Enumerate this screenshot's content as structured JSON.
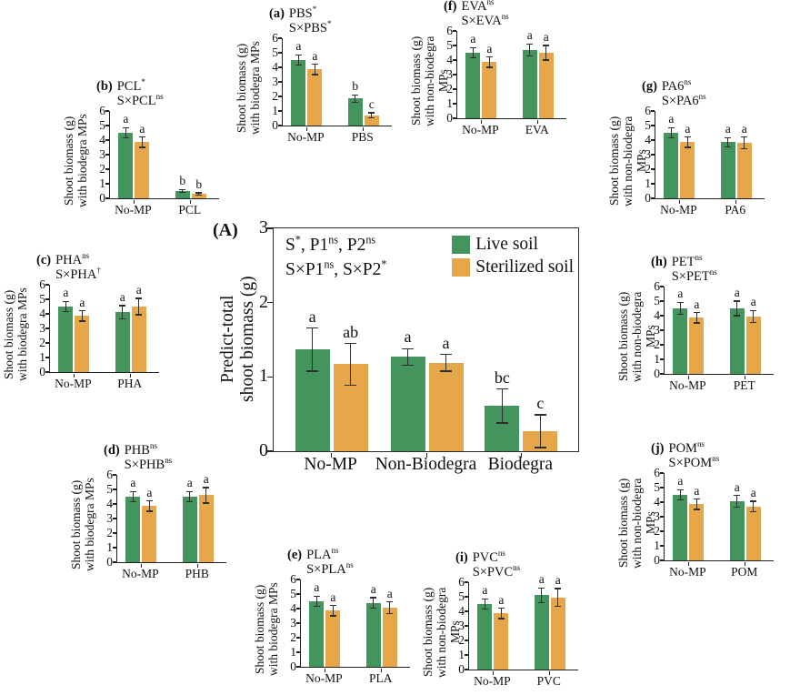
{
  "figure_label": "(A)",
  "colors": {
    "live_soil": "#44945E",
    "sterilized_soil": "#E6A74A",
    "axis": "#222222"
  },
  "legend": {
    "items": [
      {
        "label": "Live soil",
        "key": "live_soil"
      },
      {
        "label": "Sterilized soil",
        "key": "sterilized_soil"
      }
    ]
  },
  "chart_data": [
    {
      "id": "A",
      "type": "bar",
      "stats_lines": [
        [
          {
            "t": "S"
          },
          {
            "sup": "*"
          },
          {
            "t": ", P1"
          },
          {
            "sup": "ns"
          },
          {
            "t": ", P2"
          },
          {
            "sup": "ns"
          }
        ],
        [
          {
            "t": "S×P1"
          },
          {
            "sup": "ns"
          },
          {
            "t": ", S×P2"
          },
          {
            "sup": "*"
          }
        ]
      ],
      "ylabel_lines": [
        "Predict-total",
        "shoot biomass (g)"
      ],
      "ylim": [
        0,
        3
      ],
      "yticks": [
        0,
        1,
        2,
        3
      ],
      "categories": [
        "No-MP",
        "Non-Biodegra",
        "Biodegra"
      ],
      "legend_position": "top-right",
      "grid": false,
      "series": [
        {
          "name": "Live soil",
          "key": "live_soil",
          "values": [
            1.37,
            1.27,
            0.61
          ],
          "errors": [
            0.3,
            0.12,
            0.24
          ],
          "letters": [
            "a",
            "a",
            "bc"
          ]
        },
        {
          "name": "Sterilized soil",
          "key": "sterilized_soil",
          "values": [
            1.17,
            1.19,
            0.27
          ],
          "errors": [
            0.29,
            0.12,
            0.23
          ],
          "letters": [
            "ab",
            "a",
            "c"
          ]
        }
      ]
    },
    {
      "id": "a",
      "type": "bar",
      "title_tag": "(a)",
      "title_line1": "PBS",
      "title_sup1": "*",
      "title_line2": "S×PBS",
      "title_sup2": "*",
      "ylabel_lines": [
        "Shoot biomass (g)",
        "with biodegra MPs"
      ],
      "ylim": [
        0,
        6
      ],
      "yticks": [
        0,
        1,
        2,
        3,
        4,
        5,
        6
      ],
      "categories": [
        "No-MP",
        "PBS"
      ],
      "series": [
        {
          "name": "Live soil",
          "key": "live_soil",
          "values": [
            4.5,
            1.85
          ],
          "errors": [
            0.4,
            0.28
          ],
          "letters": [
            "a",
            "b"
          ]
        },
        {
          "name": "Sterilized soil",
          "key": "sterilized_soil",
          "values": [
            3.85,
            0.7
          ],
          "errors": [
            0.4,
            0.22
          ],
          "letters": [
            "a",
            "c"
          ]
        }
      ]
    },
    {
      "id": "b",
      "type": "bar",
      "title_tag": "(b)",
      "title_line1": "PCL",
      "title_sup1": "*",
      "title_line2": "S×PCL",
      "title_sup2": "ns",
      "ylabel_lines": [
        "Shoot biomass (g)",
        "with biodegra MPs"
      ],
      "ylim": [
        0,
        6
      ],
      "yticks": [
        0,
        1,
        2,
        3,
        4,
        5,
        6
      ],
      "categories": [
        "No-MP",
        "PCL"
      ],
      "series": [
        {
          "name": "Live soil",
          "key": "live_soil",
          "values": [
            4.5,
            0.5
          ],
          "errors": [
            0.4,
            0.15
          ],
          "letters": [
            "a",
            "b"
          ]
        },
        {
          "name": "Sterilized soil",
          "key": "sterilized_soil",
          "values": [
            3.85,
            0.3
          ],
          "errors": [
            0.4,
            0.12
          ],
          "letters": [
            "a",
            "b"
          ]
        }
      ]
    },
    {
      "id": "c",
      "type": "bar",
      "title_tag": "(c)",
      "title_line1": "PHA",
      "title_sup1": "ns",
      "title_line2": "S×PHA",
      "title_sup2": "†",
      "ylabel_lines": [
        "Shoot biomass (g)",
        "with biodegra MPs"
      ],
      "ylim": [
        0,
        6
      ],
      "yticks": [
        0,
        1,
        2,
        3,
        4,
        5,
        6
      ],
      "categories": [
        "No-MP",
        "PHA"
      ],
      "series": [
        {
          "name": "Live soil",
          "key": "live_soil",
          "values": [
            4.5,
            4.1
          ],
          "errors": [
            0.4,
            0.5
          ],
          "letters": [
            "a",
            "a"
          ]
        },
        {
          "name": "Sterilized soil",
          "key": "sterilized_soil",
          "values": [
            3.85,
            4.5
          ],
          "errors": [
            0.4,
            0.6
          ],
          "letters": [
            "a",
            "a"
          ]
        }
      ]
    },
    {
      "id": "d",
      "type": "bar",
      "title_tag": "(d)",
      "title_line1": "PHB",
      "title_sup1": "ns",
      "title_line2": "S×PHB",
      "title_sup2": "ns",
      "ylabel_lines": [
        "Shoot biomass (g)",
        "with biodegra MPs"
      ],
      "ylim": [
        0,
        6
      ],
      "yticks": [
        0,
        1,
        2,
        3,
        4,
        5,
        6
      ],
      "categories": [
        "No-MP",
        "PHB"
      ],
      "series": [
        {
          "name": "Live soil",
          "key": "live_soil",
          "values": [
            4.5,
            4.5
          ],
          "errors": [
            0.4,
            0.4
          ],
          "letters": [
            "a",
            "a"
          ]
        },
        {
          "name": "Sterilized soil",
          "key": "sterilized_soil",
          "values": [
            3.85,
            4.6
          ],
          "errors": [
            0.4,
            0.58
          ],
          "letters": [
            "a",
            "a"
          ]
        }
      ]
    },
    {
      "id": "e",
      "type": "bar",
      "title_tag": "(e)",
      "title_line1": "PLA",
      "title_sup1": "ns",
      "title_line2": "S×PLA",
      "title_sup2": "ns",
      "ylabel_lines": [
        "Shoot biomass (g)",
        "with biodegra MPs"
      ],
      "ylim": [
        0,
        6
      ],
      "yticks": [
        0,
        1,
        2,
        3,
        4,
        5,
        6
      ],
      "categories": [
        "No-MP",
        "PLA"
      ],
      "series": [
        {
          "name": "Live soil",
          "key": "live_soil",
          "values": [
            4.5,
            4.4
          ],
          "errors": [
            0.4,
            0.4
          ],
          "letters": [
            "a",
            "a"
          ]
        },
        {
          "name": "Sterilized soil",
          "key": "sterilized_soil",
          "values": [
            3.85,
            4.05
          ],
          "errors": [
            0.4,
            0.45
          ],
          "letters": [
            "a",
            "a"
          ]
        }
      ]
    },
    {
      "id": "f",
      "type": "bar",
      "title_tag": "(f)",
      "title_line1": "EVA",
      "title_sup1": "ns",
      "title_line2": "S×EVA",
      "title_sup2": "ns",
      "ylabel_lines": [
        "Shoot biomass (g)",
        "with non-biodegra MPs"
      ],
      "ylim": [
        0,
        6
      ],
      "yticks": [
        0,
        1,
        2,
        3,
        4,
        5,
        6
      ],
      "categories": [
        "No-MP",
        "EVA"
      ],
      "series": [
        {
          "name": "Live soil",
          "key": "live_soil",
          "values": [
            4.5,
            4.7
          ],
          "errors": [
            0.4,
            0.45
          ],
          "letters": [
            "a",
            "a"
          ]
        },
        {
          "name": "Sterilized soil",
          "key": "sterilized_soil",
          "values": [
            3.85,
            4.5
          ],
          "errors": [
            0.4,
            0.55
          ],
          "letters": [
            "a",
            "a"
          ]
        }
      ]
    },
    {
      "id": "g",
      "type": "bar",
      "title_tag": "(g)",
      "title_line1": "PA6",
      "title_sup1": "ns",
      "title_line2": "S×PA6",
      "title_sup2": "ns",
      "ylabel_lines": [
        "Shoot biomass (g)",
        "with non-biodegra MPs"
      ],
      "ylim": [
        0,
        6
      ],
      "yticks": [
        0,
        1,
        2,
        3,
        4,
        5,
        6
      ],
      "categories": [
        "No-MP",
        "PA6"
      ],
      "series": [
        {
          "name": "Live soil",
          "key": "live_soil",
          "values": [
            4.5,
            3.85
          ],
          "errors": [
            0.4,
            0.35
          ],
          "letters": [
            "a",
            "a"
          ]
        },
        {
          "name": "Sterilized soil",
          "key": "sterilized_soil",
          "values": [
            3.85,
            3.8
          ],
          "errors": [
            0.4,
            0.45
          ],
          "letters": [
            "a",
            "a"
          ]
        }
      ]
    },
    {
      "id": "h",
      "type": "bar",
      "title_tag": "(h)",
      "title_line1": "PET",
      "title_sup1": "ns",
      "title_line2": "S×PET",
      "title_sup2": "ns",
      "ylabel_lines": [
        "Shoot biomass (g)",
        "with non-biodegra MPs"
      ],
      "ylim": [
        0,
        6
      ],
      "yticks": [
        0,
        1,
        2,
        3,
        4,
        5,
        6
      ],
      "categories": [
        "No-MP",
        "PET"
      ],
      "series": [
        {
          "name": "Live soil",
          "key": "live_soil",
          "values": [
            4.5,
            4.5
          ],
          "errors": [
            0.45,
            0.55
          ],
          "letters": [
            "a",
            "a"
          ]
        },
        {
          "name": "Sterilized soil",
          "key": "sterilized_soil",
          "values": [
            3.85,
            3.95
          ],
          "errors": [
            0.4,
            0.45
          ],
          "letters": [
            "a",
            "a"
          ]
        }
      ]
    },
    {
      "id": "i",
      "type": "bar",
      "title_tag": "(i)",
      "title_line1": "PVC",
      "title_sup1": "ns",
      "title_line2": "S×PVC",
      "title_sup2": "ns",
      "ylabel_lines": [
        "Shoot biomass (g)",
        "with non-biodegra MPs"
      ],
      "ylim": [
        0,
        6
      ],
      "yticks": [
        0,
        1,
        2,
        3,
        4,
        5,
        6
      ],
      "categories": [
        "No-MP",
        "PVC"
      ],
      "series": [
        {
          "name": "Live soil",
          "key": "live_soil",
          "values": [
            4.5,
            5.1
          ],
          "errors": [
            0.4,
            0.55
          ],
          "letters": [
            "a",
            "a"
          ]
        },
        {
          "name": "Sterilized soil",
          "key": "sterilized_soil",
          "values": [
            3.85,
            4.95
          ],
          "errors": [
            0.4,
            0.65
          ],
          "letters": [
            "a",
            "a"
          ]
        }
      ]
    },
    {
      "id": "j",
      "type": "bar",
      "title_tag": "(j)",
      "title_line1": "POM",
      "title_sup1": "ns",
      "title_line2": "S×POM",
      "title_sup2": "ns",
      "ylabel_lines": [
        "Shoot biomass (g)",
        "with non-biodegra MPs"
      ],
      "ylim": [
        0,
        6
      ],
      "yticks": [
        0,
        1,
        2,
        3,
        4,
        5,
        6
      ],
      "categories": [
        "No-MP",
        "POM"
      ],
      "series": [
        {
          "name": "Live soil",
          "key": "live_soil",
          "values": [
            4.5,
            4.05
          ],
          "errors": [
            0.4,
            0.45
          ],
          "letters": [
            "a",
            "a"
          ]
        },
        {
          "name": "Sterilized soil",
          "key": "sterilized_soil",
          "values": [
            3.85,
            3.7
          ],
          "errors": [
            0.4,
            0.4
          ],
          "letters": [
            "a",
            "a"
          ]
        }
      ]
    }
  ]
}
